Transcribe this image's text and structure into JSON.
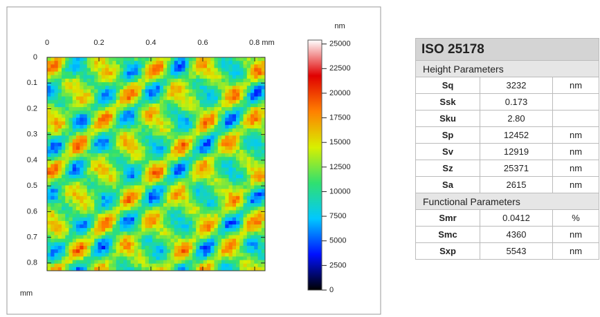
{
  "chart_data": {
    "type": "heatmap",
    "x_unit": "mm",
    "y_unit": "mm",
    "colorbar_unit": "nm",
    "xlim": [
      0,
      0.84
    ],
    "xticks": [
      0,
      0.2,
      0.4,
      0.6,
      {
        "value": 0.8,
        "label": "0.8 mm"
      }
    ],
    "ylim": [
      0,
      0.83
    ],
    "yticks": [
      0,
      0.1,
      0.2,
      0.3,
      0.4,
      0.5,
      0.6,
      0.7,
      0.8
    ],
    "colorbar_lim": [
      0,
      25400
    ],
    "colorbar_ticks": [
      0,
      2500,
      5000,
      7500,
      10000,
      12500,
      15000,
      17500,
      20000,
      22500,
      25000
    ],
    "colormap": [
      "#000000",
      "#0010ff",
      "#00c8ff",
      "#30e070",
      "#d8f000",
      "#ff8000",
      "#e00000",
      "#ffffff"
    ]
  },
  "table": {
    "title": "ISO 25178",
    "sections": [
      {
        "name": "Height Parameters",
        "rows": [
          [
            "Sq",
            "3232",
            "nm"
          ],
          [
            "Ssk",
            "0.173",
            ""
          ],
          [
            "Sku",
            "2.80",
            ""
          ],
          [
            "Sp",
            "12452",
            "nm"
          ],
          [
            "Sv",
            "12919",
            "nm"
          ],
          [
            "Sz",
            "25371",
            "nm"
          ],
          [
            "Sa",
            "2615",
            "nm"
          ]
        ]
      },
      {
        "name": "Functional Parameters",
        "rows": [
          [
            "Smr",
            "0.0412",
            "%"
          ],
          [
            "Smc",
            "4360",
            "nm"
          ],
          [
            "Sxp",
            "5543",
            "nm"
          ]
        ]
      }
    ]
  }
}
